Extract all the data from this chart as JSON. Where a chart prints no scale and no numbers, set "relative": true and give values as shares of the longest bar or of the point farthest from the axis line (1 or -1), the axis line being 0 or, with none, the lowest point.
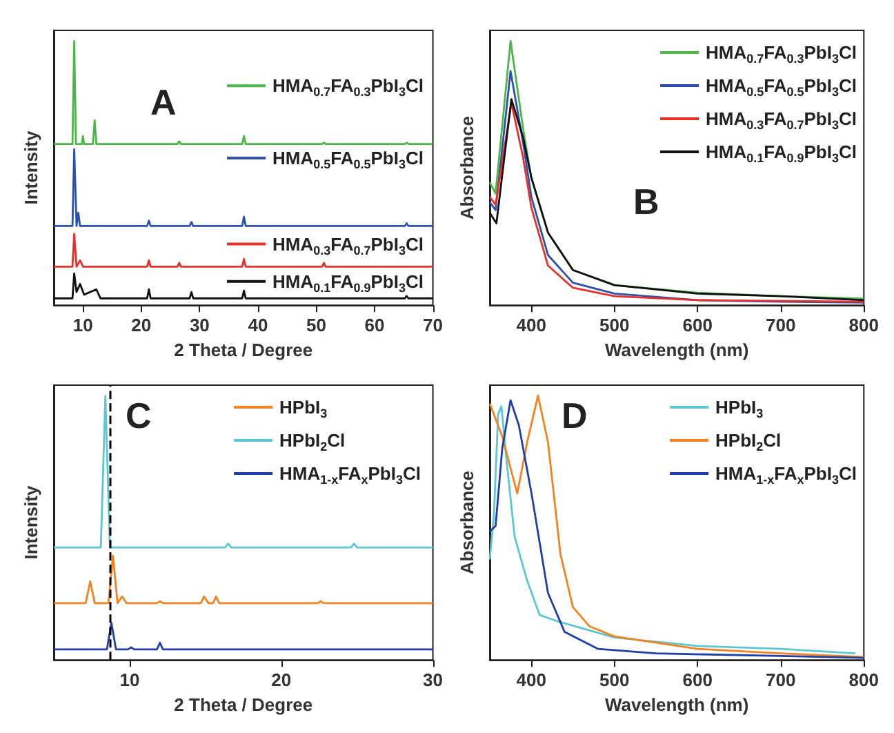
{
  "chart_data": [
    {
      "type": "line",
      "title": "A",
      "xlabel": "2 Theta / Degree",
      "ylabel": "Intensity",
      "relative": true,
      "tick_labels": "x",
      "xlim": [
        5,
        70
      ],
      "xticks": [
        10,
        20,
        30,
        40,
        50,
        60,
        70
      ],
      "legend": "right",
      "marker": "none",
      "line_style": "solid",
      "grid": false,
      "series": [
        {
          "name": "HMA$_{0.7}$FA$_{0.3}$PbI$_{3}$Cl",
          "color": "#4cb748",
          "x": [
            5,
            8.2,
            8.5,
            8.8,
            9.8,
            10,
            10.2,
            11.7,
            12,
            12.3,
            26.2,
            26.5,
            26.8,
            37.3,
            37.6,
            37.9,
            51,
            51.3,
            51.6,
            65.2,
            65.5,
            65.8,
            70
          ],
          "values": [
            0.61,
            0.61,
            1.0,
            0.61,
            0.61,
            0.64,
            0.61,
            0.61,
            0.7,
            0.61,
            0.61,
            0.62,
            0.61,
            0.61,
            0.64,
            0.61,
            0.61,
            0.615,
            0.61,
            0.61,
            0.615,
            0.61,
            0.61
          ]
        },
        {
          "name": "HMA$_{0.5}$FA$_{0.5}$PbI$_{3}$Cl",
          "color": "#2b50b0",
          "x": [
            5,
            8.2,
            8.5,
            8.9,
            9.2,
            9.5,
            21,
            21.3,
            21.6,
            28.3,
            28.6,
            28.9,
            37.3,
            37.6,
            37.9,
            65.2,
            65.5,
            65.8,
            70
          ],
          "values": [
            0.3,
            0.3,
            0.59,
            0.3,
            0.35,
            0.3,
            0.3,
            0.32,
            0.3,
            0.3,
            0.315,
            0.3,
            0.3,
            0.335,
            0.3,
            0.3,
            0.31,
            0.3,
            0.3
          ]
        },
        {
          "name": "HMA$_{0.3}$FA$_{0.7}$PbI$_{3}$Cl",
          "color": "#e8302a",
          "x": [
            5,
            8.2,
            8.5,
            8.9,
            9.5,
            10,
            21,
            21.3,
            21.6,
            26.2,
            26.5,
            26.8,
            37.3,
            37.6,
            37.9,
            51,
            51.3,
            51.6,
            70
          ],
          "values": [
            0.146,
            0.146,
            0.27,
            0.146,
            0.17,
            0.146,
            0.146,
            0.17,
            0.146,
            0.146,
            0.16,
            0.146,
            0.146,
            0.175,
            0.146,
            0.146,
            0.16,
            0.146,
            0.146
          ]
        },
        {
          "name": "HMA$_{0.1}$FA$_{0.9}$PbI$_{3}$Cl",
          "color": "#111111",
          "x": [
            5,
            8.2,
            8.5,
            8.9,
            9.5,
            10.2,
            12.3,
            13,
            21,
            21.3,
            21.6,
            28.3,
            28.6,
            28.9,
            37.3,
            37.6,
            37.9,
            65.2,
            65.5,
            65.8,
            70
          ],
          "values": [
            0.026,
            0.026,
            0.12,
            0.05,
            0.08,
            0.04,
            0.06,
            0.026,
            0.026,
            0.06,
            0.026,
            0.026,
            0.05,
            0.026,
            0.026,
            0.055,
            0.026,
            0.026,
            0.035,
            0.026,
            0.026
          ]
        }
      ]
    },
    {
      "type": "line",
      "title": "B",
      "xlabel": "Wavelength (nm)",
      "ylabel": "Absorbance",
      "relative": true,
      "tick_labels": "x",
      "xlim": [
        350,
        800
      ],
      "xticks": [
        400,
        500,
        600,
        700,
        800
      ],
      "legend": "top right",
      "marker": "none",
      "line_style": "solid",
      "grid": false,
      "series": [
        {
          "name": "HMA$_{0.7}$FA$_{0.3}$PbI$_{3}$Cl",
          "color": "#4cb748",
          "x": [
            350,
            357,
            375,
            390,
            400,
            420,
            450,
            500,
            600,
            700,
            800
          ],
          "values": [
            0.465,
            0.423,
            1.0,
            0.67,
            0.48,
            0.275,
            0.133,
            0.076,
            0.047,
            0.034,
            0.025
          ]
        },
        {
          "name": "HMA$_{0.5}$FA$_{0.5}$PbI$_{3}$Cl",
          "color": "#2b50b0",
          "x": [
            350,
            357,
            375,
            390,
            400,
            420,
            450,
            500,
            600,
            700,
            800
          ],
          "values": [
            0.39,
            0.36,
            0.886,
            0.617,
            0.41,
            0.19,
            0.085,
            0.044,
            0.019,
            0.013,
            0.01
          ]
        },
        {
          "name": "HMA$_{0.3}$FA$_{0.7}$PbI$_{3}$Cl",
          "color": "#e8302a",
          "x": [
            350,
            357,
            376,
            390,
            400,
            420,
            450,
            500,
            600,
            800
          ],
          "values": [
            0.41,
            0.38,
            0.765,
            0.56,
            0.37,
            0.15,
            0.066,
            0.034,
            0.019,
            0.013
          ]
        },
        {
          "name": "HMA$_{0.1}$FA$_{0.9}$PbI$_{3}$Cl",
          "color": "#111111",
          "x": [
            350,
            358,
            376,
            390,
            400,
            420,
            450,
            500,
            600,
            700,
            800
          ],
          "values": [
            0.35,
            0.31,
            0.78,
            0.636,
            0.484,
            0.275,
            0.133,
            0.076,
            0.044,
            0.034,
            0.019
          ]
        }
      ]
    },
    {
      "type": "line",
      "title": "C",
      "xlabel": "2 Theta / Degree",
      "ylabel": "Intensity",
      "relative": true,
      "tick_labels": "x",
      "xlim": [
        5,
        30
      ],
      "xticks": [
        10,
        20,
        30
      ],
      "legend": "top right",
      "marker": "none",
      "line_style": "solid",
      "grid": false,
      "ref_lines": [
        {
          "axis": "x",
          "value": 8.7,
          "color": "#000000",
          "line_style": "dashed"
        }
      ],
      "series": [
        {
          "name": "HPbI$_{3}$",
          "color": "#f58220",
          "x": [
            5,
            7.1,
            7.4,
            7.7,
            8.6,
            8.9,
            9.2,
            9.5,
            9.8,
            11.8,
            12,
            12.2,
            14.7,
            14.9,
            15.2,
            15.5,
            15.7,
            15.9,
            22.4,
            22.6,
            22.8,
            30
          ],
          "values": [
            0.215,
            0.215,
            0.297,
            0.215,
            0.215,
            0.395,
            0.215,
            0.24,
            0.215,
            0.215,
            0.222,
            0.215,
            0.215,
            0.24,
            0.215,
            0.215,
            0.24,
            0.215,
            0.215,
            0.222,
            0.215,
            0.215
          ]
        },
        {
          "name": "HPbI$_{2}$Cl",
          "color": "#5cc6d6",
          "x": [
            5,
            8.1,
            8.4,
            8.7,
            16.3,
            16.5,
            16.7,
            24.6,
            24.8,
            25,
            30
          ],
          "values": [
            0.426,
            0.426,
            1.0,
            0.426,
            0.426,
            0.44,
            0.426,
            0.426,
            0.44,
            0.426,
            0.426
          ]
        },
        {
          "name": "HMA$_{1-x}$FA$_{x}$PbI$_{3}$Cl",
          "color": "#1f3fa8",
          "x": [
            5,
            8.5,
            8.8,
            9.1,
            9.9,
            10.1,
            10.3,
            11.8,
            12,
            12.2,
            30
          ],
          "values": [
            0.04,
            0.04,
            0.14,
            0.04,
            0.04,
            0.048,
            0.04,
            0.04,
            0.065,
            0.04,
            0.04
          ]
        }
      ]
    },
    {
      "type": "line",
      "title": "D",
      "xlabel": "Wavelength (nm)",
      "ylabel": "Absorbance",
      "relative": true,
      "tick_labels": "x",
      "xlim": [
        350,
        800
      ],
      "xticks": [
        400,
        500,
        600,
        700,
        800
      ],
      "legend": "top right",
      "marker": "none",
      "line_style": "solid",
      "grid": false,
      "series": [
        {
          "name": "HPbI$_{3}$",
          "color": "#5cc6d6",
          "x": [
            350,
            355,
            360,
            364,
            370,
            380,
            395,
            410,
            430,
            500,
            600,
            700,
            790
          ],
          "values": [
            0.38,
            0.55,
            0.93,
            0.96,
            0.76,
            0.465,
            0.3,
            0.17,
            0.148,
            0.085,
            0.053,
            0.042,
            0.025
          ]
        },
        {
          "name": "HPbI$_{2}$Cl",
          "color": "#f58220",
          "x": [
            350,
            365,
            383,
            395,
            408,
            420,
            435,
            450,
            470,
            500,
            600,
            700,
            800
          ],
          "values": [
            0.97,
            0.846,
            0.63,
            0.825,
            1.0,
            0.825,
            0.4,
            0.2,
            0.127,
            0.089,
            0.042,
            0.025,
            0.011
          ]
        },
        {
          "name": "HMA$_{1-x}$FA$_{x}$PbI$_{3}$Cl",
          "color": "#1f3fa8",
          "x": [
            350,
            357,
            365,
            375,
            385,
            400,
            420,
            440,
            480,
            550,
            700,
            800
          ],
          "values": [
            0.486,
            0.507,
            0.8,
            0.983,
            0.888,
            0.634,
            0.254,
            0.106,
            0.042,
            0.025,
            0.015,
            0.008
          ]
        }
      ]
    }
  ]
}
